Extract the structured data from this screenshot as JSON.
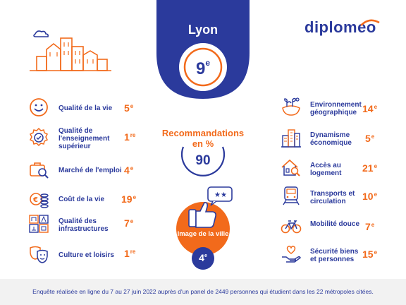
{
  "brand": {
    "logo_text": "diplomeo",
    "colors": {
      "blue": "#2b3a9c",
      "orange": "#f26a1b"
    }
  },
  "city": {
    "name": "Lyon",
    "rank_num": "9",
    "rank_suffix": "e"
  },
  "recommendations": {
    "title_line1": "Recommandations",
    "title_line2": "en %",
    "value": "90"
  },
  "image": {
    "label": "Image de la ville",
    "rank_num": "4",
    "rank_suffix": "e"
  },
  "left_criteria": [
    {
      "label": "Qualité de la vie",
      "rank_num": "5",
      "rank_suffix": "e",
      "icon": "smiley-icon"
    },
    {
      "label": "Qualité de l'enseignement supérieur",
      "rank_num": "1",
      "rank_suffix": "re",
      "icon": "badge-check-icon"
    },
    {
      "label": "Marché de l'emploi",
      "rank_num": "4",
      "rank_suffix": "e",
      "icon": "briefcase-search-icon"
    },
    {
      "label": "Coût de la vie",
      "rank_num": "19",
      "rank_suffix": "e",
      "icon": "euro-coins-icon"
    },
    {
      "label": "Qualité des infrastructures",
      "rank_num": "7",
      "rank_suffix": "e",
      "icon": "infrastructure-icon"
    },
    {
      "label": "Culture et loisirs",
      "rank_num": "1",
      "rank_suffix": "re",
      "icon": "theater-masks-icon"
    }
  ],
  "right_criteria": [
    {
      "label": "Environnement géographique",
      "rank_num": "14",
      "rank_suffix": "e",
      "icon": "nature-icon"
    },
    {
      "label": "Dynamisme économique",
      "rank_num": "5",
      "rank_suffix": "e",
      "icon": "buildings-icon"
    },
    {
      "label": "Accès au logement",
      "rank_num": "21",
      "rank_suffix": "e",
      "icon": "house-search-icon"
    },
    {
      "label": "Transports et circulation",
      "rank_num": "10",
      "rank_suffix": "e",
      "icon": "train-icon"
    },
    {
      "label": "Mobilité douce",
      "rank_num": "7",
      "rank_suffix": "e",
      "icon": "bicycle-icon"
    },
    {
      "label": "Sécurité biens et personnes",
      "rank_num": "15",
      "rank_suffix": "e",
      "icon": "hand-heart-icon"
    }
  ],
  "footer": "Enquête réalisée en ligne du 7 au 27 juin 2022 auprès d'un panel de 2449 personnes qui étudient dans les 22 métropoles citées."
}
